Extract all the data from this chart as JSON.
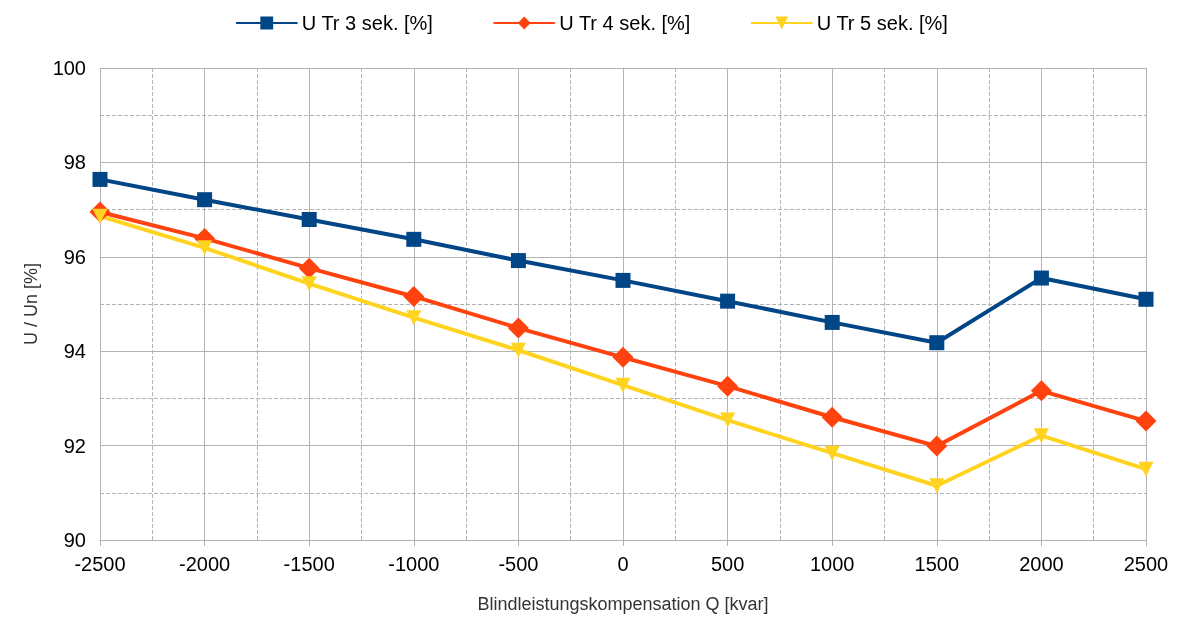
{
  "chart_data": {
    "type": "line",
    "xlabel": "Blindleistungskompensation Q [kvar]",
    "ylabel": "U / Un [%]",
    "x": [
      -2500,
      -2000,
      -1500,
      -1000,
      -500,
      0,
      500,
      1000,
      1500,
      2000,
      2500
    ],
    "series": [
      {
        "name": "U Tr 3 sek. [%]",
        "color": "#004586",
        "marker": "square",
        "values": [
          97.64,
          97.21,
          96.79,
          96.37,
          95.92,
          95.5,
          95.06,
          94.61,
          94.18,
          95.55,
          95.1
        ]
      },
      {
        "name": "U Tr 4 sek. [%]",
        "color": "#ff420e",
        "marker": "diamond",
        "values": [
          96.95,
          96.39,
          95.76,
          95.16,
          94.49,
          93.87,
          93.26,
          92.6,
          91.99,
          93.16,
          92.52
        ]
      },
      {
        "name": "U Tr 5 sek. [%]",
        "color": "#ffd320",
        "marker": "triangle",
        "values": [
          96.86,
          96.19,
          95.43,
          94.71,
          94.02,
          93.28,
          92.54,
          91.84,
          91.15,
          92.21,
          91.5
        ]
      }
    ],
    "xlim": [
      -2500,
      2500
    ],
    "xticks": [
      -2500,
      -2000,
      -1500,
      -1000,
      -500,
      0,
      500,
      1000,
      1500,
      2000,
      2500
    ],
    "ylim": [
      90,
      100
    ],
    "yticks": [
      90,
      92,
      94,
      96,
      98,
      100
    ],
    "grid": true,
    "legend": "top",
    "line_style": "solid"
  }
}
